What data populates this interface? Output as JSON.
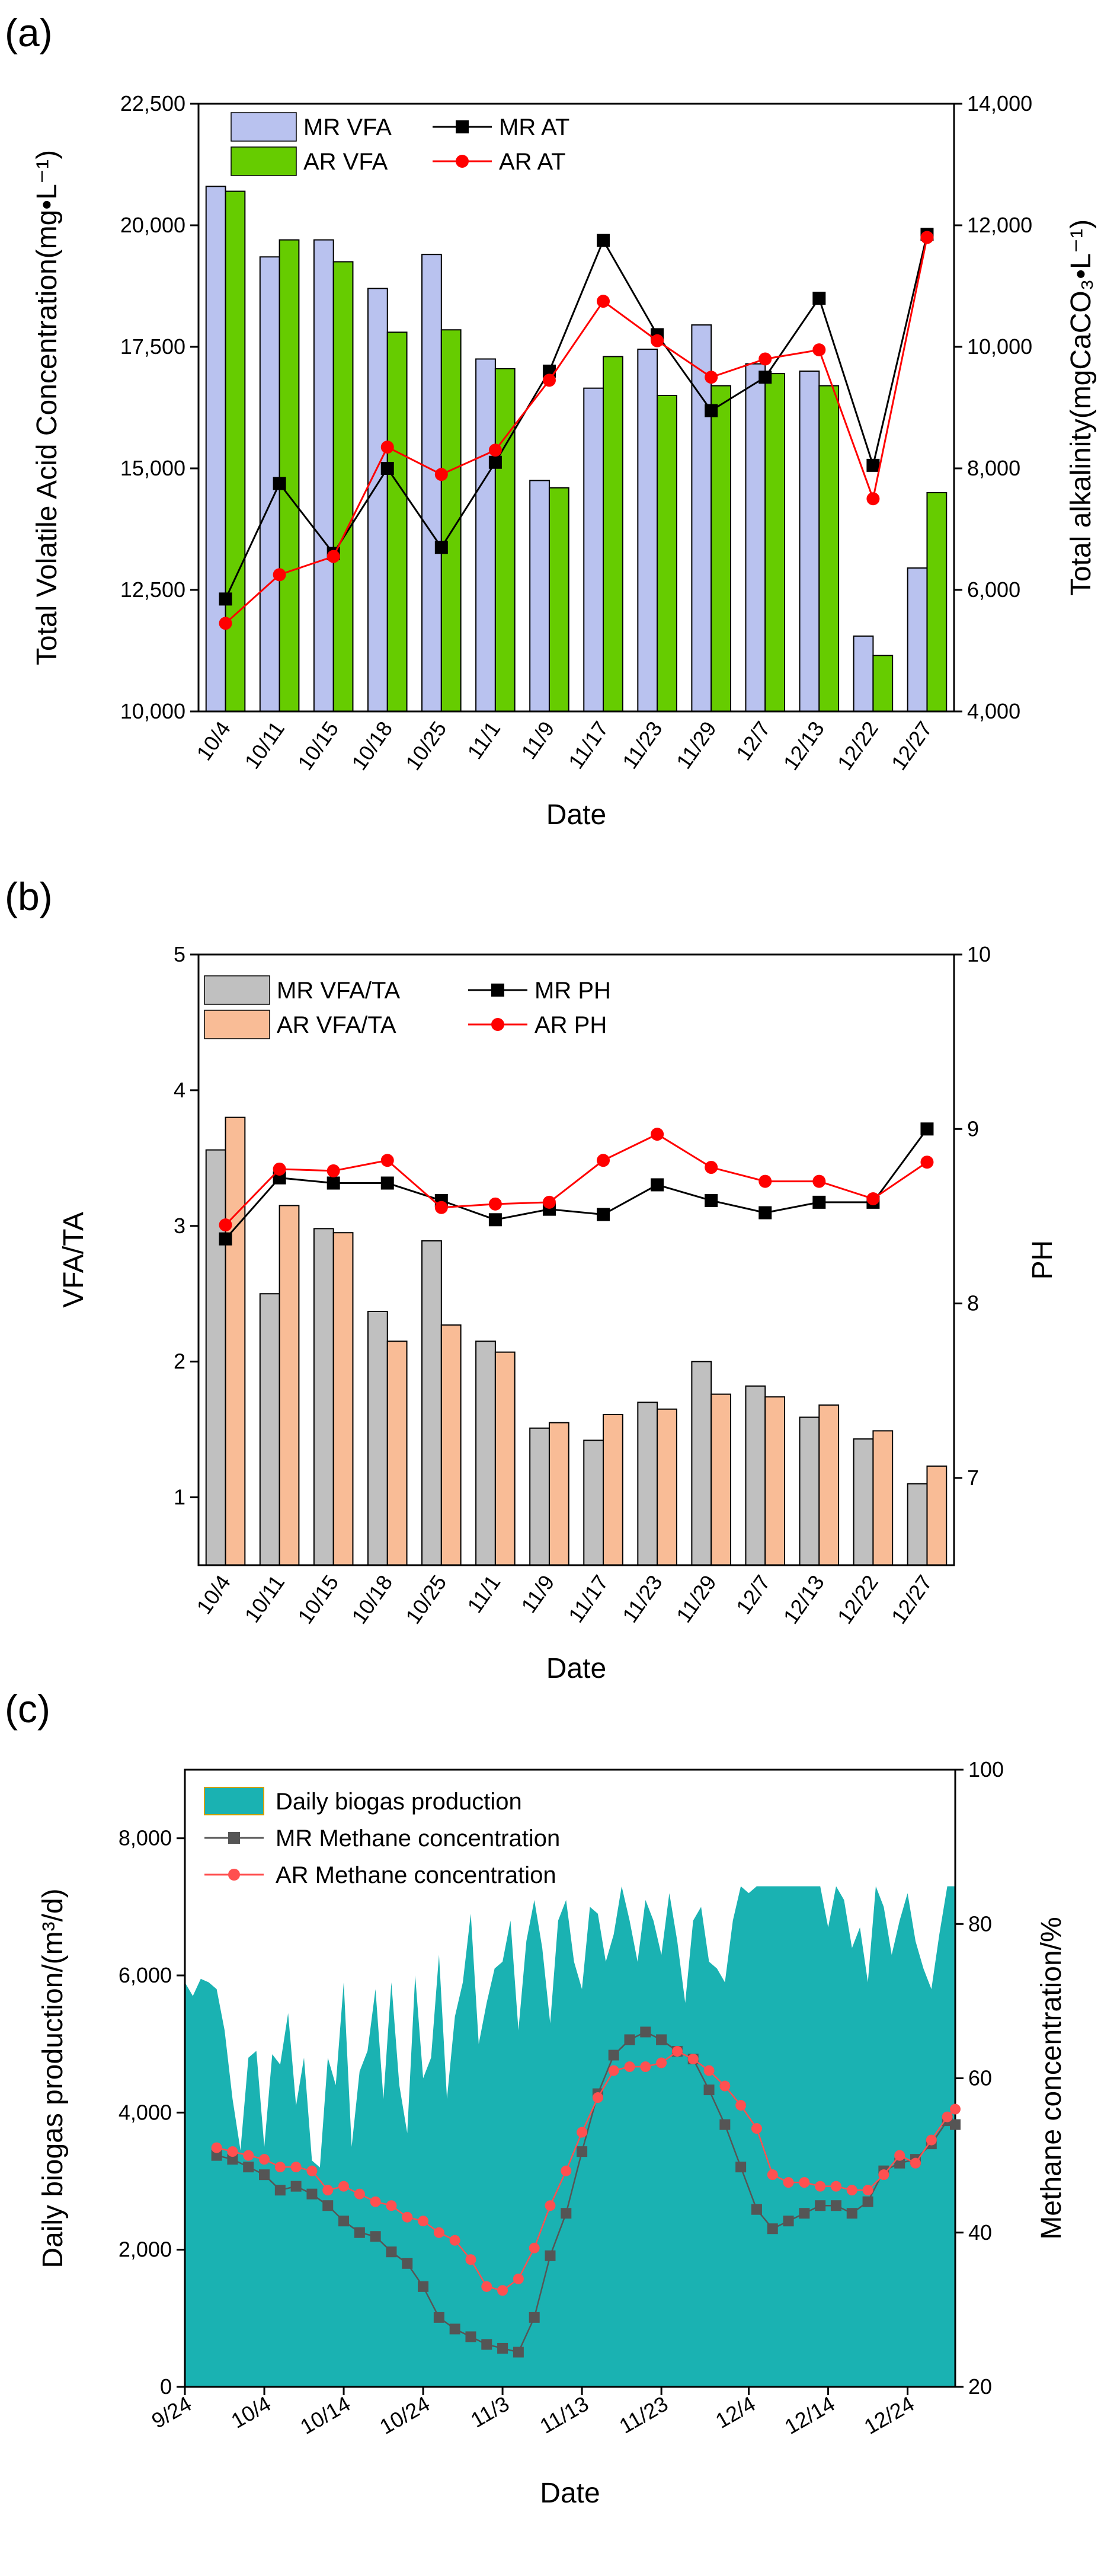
{
  "colors": {
    "mr_bar_a": "#b9c2ef",
    "ar_bar_a": "#66cc00",
    "mr_line": "#000000",
    "ar_line": "#ff0000",
    "mr_bar_b": "#c0c0c0",
    "ar_bar_b": "#f9bc96",
    "biogas_fill": "#1ab2b2",
    "mr_line_c": "#555555",
    "ar_line_c": "#ff5050"
  },
  "chart_data": [
    {
      "id": "a",
      "type": "bar",
      "panel_label": "(a)",
      "xlabel": "Date",
      "ylabel": "Total Volatile Acid Concentration(mg•L⁻¹)",
      "ylabel2": "Total alkalinity(mgCaCO₃•L⁻¹)",
      "ylim": [
        10000,
        22500
      ],
      "ylim2": [
        4000,
        14000
      ],
      "yticks": [
        10000,
        12500,
        15000,
        17500,
        20000,
        22500
      ],
      "yticks2": [
        4000,
        6000,
        8000,
        10000,
        12000,
        14000
      ],
      "ytick_labels": [
        "10,000",
        "12,500",
        "15,000",
        "17,500",
        "20,000",
        "22,500"
      ],
      "ytick2_labels": [
        "4,000",
        "6,000",
        "8,000",
        "10,000",
        "12,000",
        "14,000"
      ],
      "categories": [
        "10/4",
        "10/11",
        "10/15",
        "10/18",
        "10/25",
        "11/1",
        "11/9",
        "11/17",
        "11/23",
        "11/29",
        "12/7",
        "12/13",
        "12/22",
        "12/27"
      ],
      "series": [
        {
          "name": "MR VFA",
          "kind": "bar",
          "axis": "left",
          "values": [
            20800,
            19350,
            19700,
            18700,
            19400,
            17250,
            14750,
            16650,
            17450,
            17950,
            17150,
            17000,
            11550,
            12950
          ]
        },
        {
          "name": "AR VFA",
          "kind": "bar",
          "axis": "left",
          "values": [
            20700,
            19700,
            19250,
            17800,
            17850,
            17050,
            14600,
            17300,
            16500,
            16700,
            16950,
            16700,
            11150,
            14500
          ]
        },
        {
          "name": "MR AT",
          "kind": "line",
          "axis": "right",
          "values": [
            5850,
            7750,
            6600,
            8000,
            6700,
            8100,
            9600,
            11750,
            10200,
            8950,
            9500,
            10800,
            8050,
            11850
          ]
        },
        {
          "name": "AR AT",
          "kind": "line",
          "axis": "right",
          "values": [
            5450,
            6250,
            6550,
            8350,
            7900,
            8300,
            9450,
            10750,
            10100,
            9500,
            9800,
            9950,
            7500,
            11800
          ]
        }
      ]
    },
    {
      "id": "b",
      "type": "bar",
      "panel_label": "(b)",
      "xlabel": "Date",
      "ylabel": "VFA/TA",
      "ylabel2": "PH",
      "ylim": [
        0.5,
        5
      ],
      "ylim2": [
        6.5,
        10
      ],
      "yticks": [
        1,
        2,
        3,
        4,
        5
      ],
      "yticks2": [
        7,
        8,
        9,
        10
      ],
      "ytick_labels": [
        "1",
        "2",
        "3",
        "4",
        "5"
      ],
      "ytick2_labels": [
        "7",
        "8",
        "9",
        "10"
      ],
      "categories": [
        "10/4",
        "10/11",
        "10/15",
        "10/18",
        "10/25",
        "11/1",
        "11/9",
        "11/17",
        "11/23",
        "11/29",
        "12/7",
        "12/13",
        "12/22",
        "12/27"
      ],
      "series": [
        {
          "name": "MR VFA/TA",
          "kind": "bar",
          "axis": "left",
          "values": [
            3.56,
            2.5,
            2.98,
            2.37,
            2.89,
            2.15,
            1.51,
            1.42,
            1.7,
            2.0,
            1.82,
            1.59,
            1.43,
            1.1
          ]
        },
        {
          "name": "AR VFA/TA",
          "kind": "bar",
          "axis": "left",
          "values": [
            3.8,
            3.15,
            2.95,
            2.15,
            2.27,
            2.07,
            1.55,
            1.61,
            1.65,
            1.76,
            1.74,
            1.68,
            1.49,
            1.23
          ]
        },
        {
          "name": "MR PH",
          "kind": "line",
          "axis": "right",
          "values": [
            8.37,
            8.72,
            8.69,
            8.69,
            8.59,
            8.48,
            8.54,
            8.51,
            8.68,
            8.59,
            8.52,
            8.58,
            8.58,
            9.0
          ]
        },
        {
          "name": "AR PH",
          "kind": "line",
          "axis": "right",
          "values": [
            8.45,
            8.77,
            8.76,
            8.82,
            8.55,
            8.57,
            8.58,
            8.82,
            8.97,
            8.78,
            8.7,
            8.7,
            8.6,
            8.81
          ]
        }
      ]
    },
    {
      "id": "c",
      "type": "area",
      "panel_label": "(c)",
      "xlabel": "Date",
      "ylabel": "Daily biogas production/(m³/d)",
      "ylabel2": "Methane concentration/%",
      "xlim": [
        0,
        97
      ],
      "ylim": [
        0,
        9000
      ],
      "ylim2": [
        20,
        100
      ],
      "yticks": [
        0,
        2000,
        4000,
        6000,
        8000
      ],
      "yticks2": [
        20,
        40,
        60,
        80,
        100
      ],
      "ytick_labels": [
        "0",
        "2,000",
        "4,000",
        "6,000",
        "8,000"
      ],
      "ytick2_labels": [
        "20",
        "40",
        "60",
        "80",
        "100"
      ],
      "xtick_days": [
        0,
        10,
        20,
        30,
        40,
        50,
        60,
        71,
        81,
        91
      ],
      "xtick_labels": [
        "9/24",
        "10/4",
        "10/14",
        "10/24",
        "11/3",
        "11/13",
        "11/23",
        "12/4",
        "12/14",
        "12/24"
      ],
      "area": {
        "name": "Daily biogas production",
        "x": [
          0,
          1,
          2,
          3,
          4,
          5,
          6,
          7,
          8,
          9,
          10,
          11,
          12,
          13,
          14,
          15,
          16,
          17,
          18,
          19,
          20,
          21,
          22,
          23,
          24,
          25,
          26,
          27,
          28,
          29,
          30,
          31,
          32,
          33,
          34,
          35,
          36,
          37,
          38,
          39,
          40,
          41,
          42,
          43,
          44,
          45,
          46,
          47,
          48,
          49,
          50,
          51,
          52,
          53,
          54,
          55,
          56,
          57,
          58,
          59,
          60,
          61,
          62,
          63,
          64,
          65,
          66,
          67,
          68,
          69,
          70,
          71,
          72,
          73,
          74,
          75,
          76,
          77,
          78,
          79,
          80,
          81,
          82,
          83,
          84,
          85,
          86,
          87,
          88,
          89,
          90,
          91,
          92,
          93,
          94,
          95,
          96,
          97
        ],
        "values": [
          5900,
          5700,
          5950,
          5900,
          5800,
          5200,
          4200,
          3450,
          4800,
          4900,
          3500,
          4850,
          4700,
          5450,
          4100,
          4800,
          3300,
          3200,
          4800,
          4400,
          5900,
          3500,
          4600,
          4900,
          5800,
          4200,
          5900,
          4400,
          3700,
          6000,
          4500,
          4800,
          6300,
          4200,
          5400,
          5900,
          6900,
          5000,
          5600,
          6100,
          6200,
          6800,
          5200,
          6500,
          7100,
          6400,
          5300,
          6800,
          7100,
          6200,
          5800,
          7000,
          6900,
          6200,
          6600,
          7300,
          6800,
          6200,
          7100,
          6800,
          6300,
          7200,
          6500,
          5600,
          6800,
          7000,
          6200,
          6100,
          5900,
          6800,
          7300,
          7200,
          7300,
          7300,
          7300,
          7300,
          7300,
          7300,
          7300,
          7300,
          7300,
          6700,
          7300,
          7100,
          6400,
          6700,
          5900,
          7300,
          7000,
          6300,
          6800,
          7200,
          6500,
          6100,
          5800,
          6600,
          7300,
          7300
        ]
      },
      "series": [
        {
          "name": "MR Methane concentration",
          "kind": "line",
          "axis": "right",
          "x": [
            4,
            6,
            8,
            10,
            12,
            14,
            16,
            18,
            20,
            22,
            24,
            26,
            28,
            30,
            32,
            34,
            36,
            38,
            40,
            42,
            44,
            46,
            48,
            50,
            52,
            54,
            56,
            58,
            60,
            62,
            64,
            66,
            68,
            70,
            72,
            74,
            76,
            78,
            80,
            82,
            84,
            86,
            88,
            90,
            92,
            94,
            96,
            97
          ],
          "values": [
            50.0,
            49.5,
            48.5,
            47.5,
            45.5,
            46.0,
            45.0,
            43.5,
            41.5,
            40.0,
            39.5,
            37.5,
            36.0,
            33.0,
            29.0,
            27.5,
            26.5,
            25.5,
            25.0,
            24.5,
            29.0,
            37.0,
            42.5,
            50.5,
            58.0,
            63.0,
            65.0,
            66.0,
            65.0,
            63.5,
            62.5,
            58.5,
            54.0,
            48.5,
            43.0,
            40.5,
            41.5,
            42.5,
            43.5,
            43.5,
            42.5,
            44.0,
            48.0,
            49.0,
            49.5,
            51.5,
            54.5,
            54.0
          ]
        },
        {
          "name": "AR Methane concentration",
          "kind": "line",
          "axis": "right",
          "x": [
            4,
            6,
            8,
            10,
            12,
            14,
            16,
            18,
            20,
            22,
            24,
            26,
            28,
            30,
            32,
            34,
            36,
            38,
            40,
            42,
            44,
            46,
            48,
            50,
            52,
            54,
            56,
            58,
            60,
            62,
            64,
            66,
            68,
            70,
            72,
            74,
            76,
            78,
            80,
            82,
            84,
            86,
            88,
            90,
            92,
            94,
            96,
            97
          ],
          "values": [
            51.0,
            50.5,
            50.0,
            49.5,
            48.5,
            48.5,
            48.0,
            45.5,
            46.0,
            45.0,
            44.0,
            43.5,
            42.0,
            41.5,
            40.0,
            39.0,
            36.5,
            33.0,
            32.5,
            34.0,
            38.0,
            43.5,
            48.0,
            53.0,
            57.5,
            61.0,
            61.5,
            61.5,
            62.0,
            63.5,
            62.5,
            61.0,
            59.0,
            56.5,
            53.5,
            47.5,
            46.5,
            46.5,
            46.0,
            46.0,
            45.5,
            45.5,
            47.5,
            50.0,
            49.0,
            52.0,
            55.0,
            56.0
          ]
        }
      ]
    }
  ]
}
